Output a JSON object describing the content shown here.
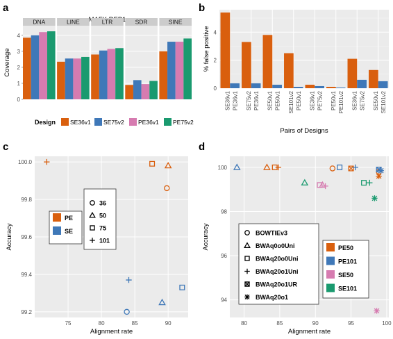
{
  "panels": {
    "a": "a",
    "b": "b",
    "c": "c",
    "d": "d"
  },
  "colors": {
    "SE36v1": "#d95f0e",
    "SE75v2": "#3f78b8",
    "PE36v1": "#d67bb0",
    "PE75v2": "#1a9a6f",
    "PE": "#d95f0e",
    "SE": "#3f78b8",
    "PE50": "#d95f0e",
    "PE101": "#3f78b8",
    "SE50": "#d67bb0",
    "SE101": "#1a9a6f"
  },
  "chart_data": [
    {
      "panel": "a",
      "type": "bar",
      "title": "MAFK REP1",
      "ylabel": "Coverage",
      "xlabel": "",
      "ylim": [
        0,
        4.6
      ],
      "yticks": [
        "0",
        "1",
        "2",
        "3",
        "4"
      ],
      "facets": [
        "DNA",
        "LINE",
        "LTR",
        "SDR",
        "SINE"
      ],
      "legend_title": "Design",
      "series": [
        {
          "name": "SE36v1",
          "values": [
            3.85,
            2.35,
            2.8,
            0.9,
            3.0
          ]
        },
        {
          "name": "SE75v2",
          "values": [
            4.0,
            2.55,
            3.05,
            1.2,
            3.6
          ]
        },
        {
          "name": "PE36v1",
          "values": [
            4.2,
            2.55,
            3.15,
            0.95,
            3.6
          ]
        },
        {
          "name": "PE75v2",
          "values": [
            4.25,
            2.65,
            3.2,
            1.15,
            3.8
          ]
        }
      ]
    },
    {
      "panel": "b",
      "type": "bar",
      "ylabel": "% false positive",
      "xlabel": "Pairs of Designs",
      "ylim": [
        0,
        5.6
      ],
      "yticks": [
        "0",
        "2",
        "4"
      ],
      "categories": [
        [
          "SE36v1",
          "PE36v1"
        ],
        [
          "SE75v2",
          "PE36v1"
        ],
        [
          "SE50v1",
          "PE50v1"
        ],
        [
          "SE101v2",
          "PE50v1"
        ],
        [
          "SE36v1",
          "PE75v2"
        ],
        [
          "PE50v1",
          "PE101v2"
        ],
        [
          "SE36v1",
          "SE75v2"
        ],
        [
          "SE50v1",
          "SE101v2"
        ]
      ],
      "series": [
        {
          "values": [
            5.4,
            3.3,
            3.8,
            2.5,
            0.25,
            0.1,
            2.1,
            1.3
          ]
        },
        {
          "values": [
            0.35,
            0.35,
            0.25,
            0.1,
            0.15,
            0.05,
            0.6,
            0.5
          ]
        }
      ]
    },
    {
      "panel": "c",
      "type": "scatter",
      "xlabel": "Alignment rate",
      "ylabel": "Accuracy",
      "xlim": [
        70,
        93
      ],
      "ylim": [
        99.17,
        100.03
      ],
      "xticks": [
        75,
        80,
        85,
        90
      ],
      "yticks": [
        {
          "value": 99.2,
          "label": "99.2"
        },
        {
          "value": 99.4,
          "label": "99.4"
        },
        {
          "value": 99.6,
          "label": "99.6"
        },
        {
          "value": 99.8,
          "label": "99.8"
        },
        {
          "value": 100.0,
          "label": "100.0"
        }
      ],
      "color_legend": [
        "PE",
        "SE"
      ],
      "shape_legend": [
        {
          "shape": "circle",
          "label": "36"
        },
        {
          "shape": "triangle",
          "label": "50"
        },
        {
          "shape": "square",
          "label": "75"
        },
        {
          "shape": "plus",
          "label": "101"
        }
      ],
      "points": [
        {
          "x": 71.8,
          "y": 100.0,
          "group": "PE",
          "shape": "plus"
        },
        {
          "x": 87.6,
          "y": 99.99,
          "group": "PE",
          "shape": "square"
        },
        {
          "x": 90.0,
          "y": 99.98,
          "group": "PE",
          "shape": "triangle"
        },
        {
          "x": 89.8,
          "y": 99.86,
          "group": "PE",
          "shape": "circle"
        },
        {
          "x": 84.1,
          "y": 99.37,
          "group": "SE",
          "shape": "plus"
        },
        {
          "x": 92.1,
          "y": 99.33,
          "group": "SE",
          "shape": "square"
        },
        {
          "x": 89.1,
          "y": 99.25,
          "group": "SE",
          "shape": "triangle"
        },
        {
          "x": 83.8,
          "y": 99.2,
          "group": "SE",
          "shape": "circle"
        }
      ]
    },
    {
      "panel": "d",
      "type": "scatter",
      "xlabel": "Alignment rate",
      "ylabel": "Accuracy",
      "xlim": [
        78,
        100.3
      ],
      "ylim": [
        93.2,
        100.5
      ],
      "xticks": [
        80,
        85,
        90,
        95,
        100
      ],
      "yticks": [
        {
          "value": 94,
          "label": "94"
        },
        {
          "value": 96,
          "label": "96"
        },
        {
          "value": 98,
          "label": "98"
        },
        {
          "value": 100,
          "label": "100"
        }
      ],
      "color_legend": [
        "PE50",
        "PE101",
        "SE50",
        "SE101"
      ],
      "shape_legend": [
        {
          "shape": "circle",
          "label": "BOWTIEv3"
        },
        {
          "shape": "triangle",
          "label": "BWAq0o0Uni"
        },
        {
          "shape": "square",
          "label": "BWAq20o0Uni"
        },
        {
          "shape": "plus",
          "label": "BWAq20o1Uni"
        },
        {
          "shape": "boxx",
          "label": "BWAq20o1UR"
        },
        {
          "shape": "asterisk",
          "label": "BWAq20o1"
        }
      ],
      "points": [
        {
          "x": 79.0,
          "y": 100.0,
          "group": "PE101",
          "shape": "triangle"
        },
        {
          "x": 83.2,
          "y": 100.0,
          "group": "PE50",
          "shape": "triangle"
        },
        {
          "x": 84.3,
          "y": 100.0,
          "group": "PE50",
          "shape": "square"
        },
        {
          "x": 84.8,
          "y": 100.0,
          "group": "PE50",
          "shape": "plus"
        },
        {
          "x": 88.5,
          "y": 99.3,
          "group": "SE101",
          "shape": "triangle"
        },
        {
          "x": 90.6,
          "y": 99.2,
          "group": "SE50",
          "shape": "square"
        },
        {
          "x": 91.0,
          "y": 99.2,
          "group": "SE50",
          "shape": "triangle"
        },
        {
          "x": 91.4,
          "y": 99.15,
          "group": "SE50",
          "shape": "plus"
        },
        {
          "x": 92.4,
          "y": 99.95,
          "group": "PE50",
          "shape": "circle"
        },
        {
          "x": 93.4,
          "y": 100.0,
          "group": "PE101",
          "shape": "square"
        },
        {
          "x": 95.0,
          "y": 99.95,
          "group": "PE50",
          "shape": "boxx"
        },
        {
          "x": 95.6,
          "y": 100.0,
          "group": "PE101",
          "shape": "plus"
        },
        {
          "x": 96.8,
          "y": 99.3,
          "group": "SE101",
          "shape": "square"
        },
        {
          "x": 97.6,
          "y": 99.3,
          "group": "SE101",
          "shape": "plus"
        },
        {
          "x": 98.3,
          "y": 98.6,
          "group": "SE101",
          "shape": "asterisk"
        },
        {
          "x": 98.9,
          "y": 99.6,
          "group": "PE50",
          "shape": "asterisk"
        },
        {
          "x": 98.9,
          "y": 99.8,
          "group": "PE50",
          "shape": "circle"
        },
        {
          "x": 98.9,
          "y": 99.9,
          "group": "PE101",
          "shape": "boxx"
        },
        {
          "x": 99.2,
          "y": 99.85,
          "group": "PE101",
          "shape": "asterisk"
        },
        {
          "x": 98.6,
          "y": 93.5,
          "group": "SE50",
          "shape": "asterisk"
        }
      ]
    }
  ]
}
